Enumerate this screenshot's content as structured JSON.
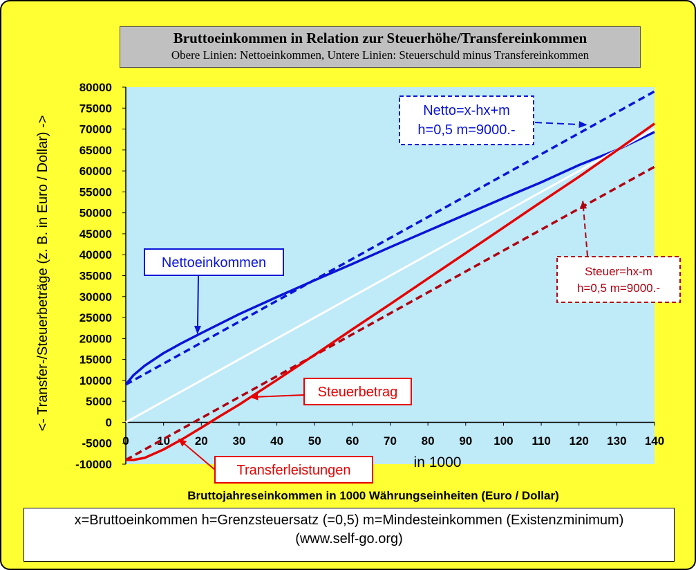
{
  "title": "Bruttoeinkommen in Relation zur Steuerhöhe/Transfereinkommen",
  "subtitle": "Obere Linien: Nettoeinkommen, Untere Linien: Steuerschuld minus Transfereinkommen",
  "footer": {
    "line1": "x=Bruttoeinkommen h=Grenzsteuersatz (=0,5) m=Mindesteinkommen (Existenzminimum)",
    "line2": "(www.self-go.org)"
  },
  "colors": {
    "background": "#ffff33",
    "plot": "#bfeaf8",
    "blue": "#0a14d8",
    "red": "#e60000",
    "darkred": "#b00010",
    "white": "#ffffff"
  },
  "chart_data": {
    "type": "line",
    "xlabel": "Bruttojahreseinkommen in  1000 Währungseinheiten (Euro / Dollar)",
    "xunit_label": "in 1000",
    "ylabel": "<- Transfer-/Steuerbeträge (z. B. in Euro / Dollar) ->",
    "xlim": [
      0,
      140
    ],
    "ylim": [
      -10000,
      80000
    ],
    "xticks": [
      0,
      10,
      20,
      30,
      40,
      50,
      60,
      70,
      80,
      90,
      100,
      110,
      120,
      130,
      140
    ],
    "yticks": [
      -10000,
      -5000,
      0,
      5000,
      10000,
      15000,
      20000,
      25000,
      30000,
      35000,
      40000,
      45000,
      50000,
      55000,
      60000,
      65000,
      70000,
      75000,
      80000
    ],
    "series": [
      {
        "key": "netto_dashed",
        "x": [
          0,
          140
        ],
        "y": [
          9000,
          79000
        ],
        "style": "dashed",
        "color": "#0a14d8"
      },
      {
        "key": "netto",
        "x": [
          0,
          2,
          5,
          10,
          15,
          20,
          30,
          40,
          50,
          60,
          70,
          80,
          90,
          100,
          110,
          120,
          130,
          140
        ],
        "y": [
          9000,
          11200,
          13500,
          16500,
          19000,
          21300,
          25800,
          29900,
          33900,
          37800,
          41800,
          45700,
          49600,
          53500,
          57300,
          61400,
          65000,
          69300
        ],
        "style": "solid",
        "color": "#0a14d8"
      },
      {
        "key": "diagonal",
        "x": [
          0,
          140
        ],
        "y": [
          0,
          70000
        ],
        "style": "solid",
        "color": "#ffffff"
      },
      {
        "key": "steuer_dashed",
        "x": [
          0,
          140
        ],
        "y": [
          -9000,
          61000
        ],
        "style": "dashed",
        "color": "#b00010"
      },
      {
        "key": "steuerbetrag",
        "x": [
          0,
          2,
          5,
          10,
          15,
          20,
          25,
          30,
          40,
          50,
          60,
          70,
          80,
          90,
          100,
          110,
          120,
          130,
          140
        ],
        "y": [
          -9000,
          -9000,
          -8500,
          -6500,
          -4000,
          -1300,
          1500,
          4200,
          10100,
          16100,
          22200,
          28200,
          34300,
          40400,
          46500,
          52600,
          58600,
          64900,
          71300
        ],
        "style": "solid",
        "color": "#e60000"
      }
    ],
    "annotations": [
      {
        "key": "netto_formula",
        "lines": [
          "Netto=x-hx+m",
          "h=0,5  m=9000.-"
        ],
        "color": "#0a14d8",
        "border": "dashed"
      },
      {
        "key": "steuer_formula",
        "lines": [
          "Steuer=hx-m",
          "h=0,5  m=9000.-"
        ],
        "color": "#b00010",
        "border": "dashed"
      },
      {
        "key": "nettoeinkommen",
        "lines": [
          "Nettoeinkommen"
        ],
        "color": "#0a14d8",
        "border": "solid"
      },
      {
        "key": "steuerbetrag",
        "lines": [
          "Steuerbetrag"
        ],
        "color": "#e60000",
        "border": "solid"
      },
      {
        "key": "transferleistungen",
        "lines": [
          "Transferleistungen"
        ],
        "color": "#e60000",
        "border": "solid"
      }
    ]
  }
}
